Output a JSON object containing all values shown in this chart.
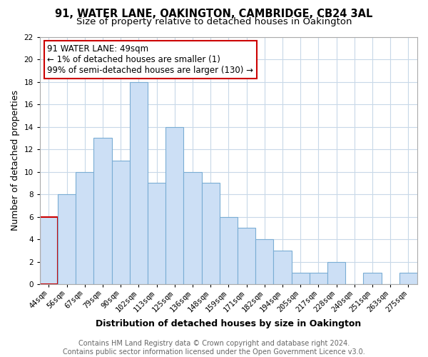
{
  "title": "91, WATER LANE, OAKINGTON, CAMBRIDGE, CB24 3AL",
  "subtitle": "Size of property relative to detached houses in Oakington",
  "xlabel": "Distribution of detached houses by size in Oakington",
  "ylabel": "Number of detached properties",
  "categories": [
    "44sqm",
    "56sqm",
    "67sqm",
    "79sqm",
    "90sqm",
    "102sqm",
    "113sqm",
    "125sqm",
    "136sqm",
    "148sqm",
    "159sqm",
    "171sqm",
    "182sqm",
    "194sqm",
    "205sqm",
    "217sqm",
    "228sqm",
    "240sqm",
    "251sqm",
    "263sqm",
    "275sqm"
  ],
  "values": [
    6,
    8,
    10,
    13,
    11,
    18,
    9,
    14,
    10,
    9,
    6,
    5,
    4,
    3,
    1,
    1,
    2,
    0,
    1,
    0,
    1
  ],
  "bar_color": "#ccdff5",
  "bar_edge_color": "#7aadd4",
  "highlight_bar_index": 0,
  "highlight_edge_color": "#cc0000",
  "annotation_box_edge_color": "#cc0000",
  "annotation_lines": [
    "91 WATER LANE: 49sqm",
    "← 1% of detached houses are smaller (1)",
    "99% of semi-detached houses are larger (130) →"
  ],
  "ylim": [
    0,
    22
  ],
  "yticks": [
    0,
    2,
    4,
    6,
    8,
    10,
    12,
    14,
    16,
    18,
    20,
    22
  ],
  "footer_lines": [
    "Contains HM Land Registry data © Crown copyright and database right 2024.",
    "Contains public sector information licensed under the Open Government Licence v3.0."
  ],
  "background_color": "#ffffff",
  "grid_color": "#c8d8e8",
  "title_fontsize": 10.5,
  "subtitle_fontsize": 9.5,
  "xlabel_fontsize": 9,
  "ylabel_fontsize": 9,
  "tick_fontsize": 7.5,
  "annotation_fontsize": 8.5,
  "footer_fontsize": 7
}
